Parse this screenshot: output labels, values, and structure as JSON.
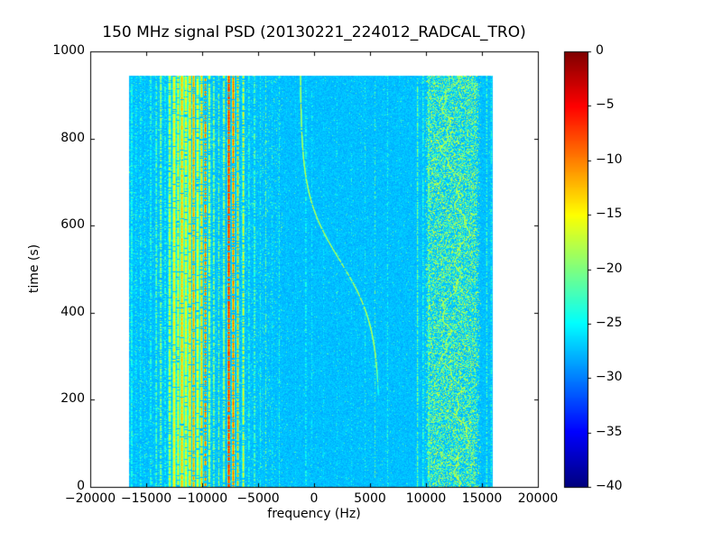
{
  "figure": {
    "background": "#ffffff",
    "frame_color": "#000000"
  },
  "chart_data": {
    "type": "heatmap",
    "title": "150 MHz signal PSD (20130221_224012_RADCAL_TRO)",
    "xlabel": "frequency (Hz)",
    "ylabel": "time (s)",
    "xlim": [
      -20000,
      20000
    ],
    "ylim": [
      0,
      1000
    ],
    "xticks": [
      -20000,
      -15000,
      -10000,
      -5000,
      0,
      5000,
      10000,
      15000,
      20000
    ],
    "yticks": [
      0,
      200,
      400,
      600,
      800,
      1000
    ],
    "xtick_labels": [
      "−20000",
      "−15000",
      "−10000",
      "−5000",
      "0",
      "5000",
      "10000",
      "15000",
      "20000"
    ],
    "ytick_labels": [
      "0",
      "200",
      "400",
      "600",
      "800",
      "1000"
    ],
    "colormap": "jet",
    "colorbar": {
      "vmin": -40,
      "vmax": 0,
      "ticks": [
        0,
        -5,
        -10,
        -15,
        -20,
        -25,
        -30,
        -35,
        -40
      ],
      "tick_labels": [
        "0",
        "−5",
        "−10",
        "−15",
        "−20",
        "−25",
        "−30",
        "−35",
        "−40"
      ]
    },
    "background_level_db": -27.5,
    "data_extent": {
      "freq_min": -16500,
      "freq_max": 16000,
      "time_min": 0,
      "time_max": 945
    },
    "noise_band": {
      "freq_min": 9900,
      "freq_max": 15000,
      "db_min": -27,
      "db_max": -15
    },
    "wandering_carrier": {
      "freq_center": 12600,
      "wander_hz": 900,
      "db": -19
    },
    "doppler_track": {
      "model": "f(t) = f_center − f_amp · tanh((t − t_mid)/tau)",
      "f_center_hz": 2350,
      "f_amp_hz": 3550,
      "t_mid_s": 520,
      "tau_s": 150,
      "t_start_s": 210,
      "t_end_s": 945,
      "db": -15.5
    },
    "interference_lines": [
      {
        "f": -16300,
        "w": 130,
        "db": -21,
        "cov": 0.8
      },
      {
        "f": -15900,
        "w": 110,
        "db": -22,
        "cov": 0.55
      },
      {
        "f": -15500,
        "w": 120,
        "db": -21,
        "cov": 0.5
      },
      {
        "f": -15100,
        "w": 100,
        "db": -22,
        "cov": 0.45
      },
      {
        "f": -14600,
        "w": 120,
        "db": -20,
        "cov": 0.55
      },
      {
        "f": -14100,
        "w": 130,
        "db": -19,
        "cov": 0.6
      },
      {
        "f": -13700,
        "w": 140,
        "db": -17,
        "cov": 0.7
      },
      {
        "f": -13300,
        "w": 120,
        "db": -20,
        "cov": 0.5
      },
      {
        "f": -12900,
        "w": 150,
        "db": -15,
        "cov": 0.85
      },
      {
        "f": -12500,
        "w": 170,
        "db": -13,
        "cov": 0.95
      },
      {
        "f": -12150,
        "w": 150,
        "db": -14,
        "cov": 0.9
      },
      {
        "f": -11800,
        "w": 190,
        "db": -12,
        "cov": 0.95
      },
      {
        "f": -11450,
        "w": 150,
        "db": -13,
        "cov": 0.9
      },
      {
        "f": -11100,
        "w": 170,
        "db": -12,
        "cov": 0.95
      },
      {
        "f": -10750,
        "w": 130,
        "db": -10,
        "cov": 0.9
      },
      {
        "f": -10400,
        "w": 150,
        "db": -13,
        "cov": 0.9
      },
      {
        "f": -10050,
        "w": 130,
        "db": -11,
        "cov": 0.85
      },
      {
        "f": -9700,
        "w": 110,
        "db": -7,
        "cov": 0.55
      },
      {
        "f": -9350,
        "w": 120,
        "db": -14,
        "cov": 0.8
      },
      {
        "f": -8950,
        "w": 110,
        "db": -16,
        "cov": 0.7
      },
      {
        "f": -8500,
        "w": 100,
        "db": -18,
        "cov": 0.6
      },
      {
        "f": -8050,
        "w": 120,
        "db": -15,
        "cov": 0.75
      },
      {
        "f": -7600,
        "w": 140,
        "db": -5,
        "cov": 0.85
      },
      {
        "f": -7200,
        "w": 130,
        "db": -8,
        "cov": 0.8
      },
      {
        "f": -6800,
        "w": 110,
        "db": -12,
        "cov": 0.8
      },
      {
        "f": -6300,
        "w": 120,
        "db": -14,
        "cov": 0.8
      },
      {
        "f": -5800,
        "w": 100,
        "db": -19,
        "cov": 0.55
      },
      {
        "f": -5300,
        "w": 110,
        "db": -18,
        "cov": 0.6
      },
      {
        "f": -4800,
        "w": 100,
        "db": -21,
        "cov": 0.5
      },
      {
        "f": -4300,
        "w": 100,
        "db": -20,
        "cov": 0.5
      },
      {
        "f": -3700,
        "w": 100,
        "db": -22,
        "cov": 0.4
      },
      {
        "f": -3100,
        "w": 100,
        "db": -21,
        "cov": 0.45
      },
      {
        "f": -2400,
        "w": 90,
        "db": -23,
        "cov": 0.35
      },
      {
        "f": -1600,
        "w": 90,
        "db": -23,
        "cov": 0.3
      },
      {
        "f": -700,
        "w": 100,
        "db": -20,
        "cov": 0.45
      },
      {
        "f": -150,
        "w": 80,
        "db": -22,
        "cov": 0.35
      },
      {
        "f": 900,
        "w": 80,
        "db": -23,
        "cov": 0.3
      },
      {
        "f": 2100,
        "w": 80,
        "db": -24,
        "cov": 0.25
      },
      {
        "f": 3400,
        "w": 80,
        "db": -23,
        "cov": 0.25
      },
      {
        "f": 4600,
        "w": 80,
        "db": -23,
        "cov": 0.3
      },
      {
        "f": 5500,
        "w": 90,
        "db": -20,
        "cov": 0.35
      },
      {
        "f": 6600,
        "w": 100,
        "db": -21,
        "cov": 0.5
      },
      {
        "f": 7700,
        "w": 80,
        "db": -23,
        "cov": 0.3
      },
      {
        "f": 8600,
        "w": 80,
        "db": -23,
        "cov": 0.3
      },
      {
        "f": 9300,
        "w": 120,
        "db": -19,
        "cov": 0.65
      },
      {
        "f": 9800,
        "w": 120,
        "db": -20,
        "cov": 0.55
      },
      {
        "f": 10300,
        "w": 120,
        "db": -19,
        "cov": 0.7
      },
      {
        "f": 15500,
        "w": 120,
        "db": -20,
        "cov": 0.55
      },
      {
        "f": 15900,
        "w": 110,
        "db": -21,
        "cov": 0.5
      }
    ]
  }
}
